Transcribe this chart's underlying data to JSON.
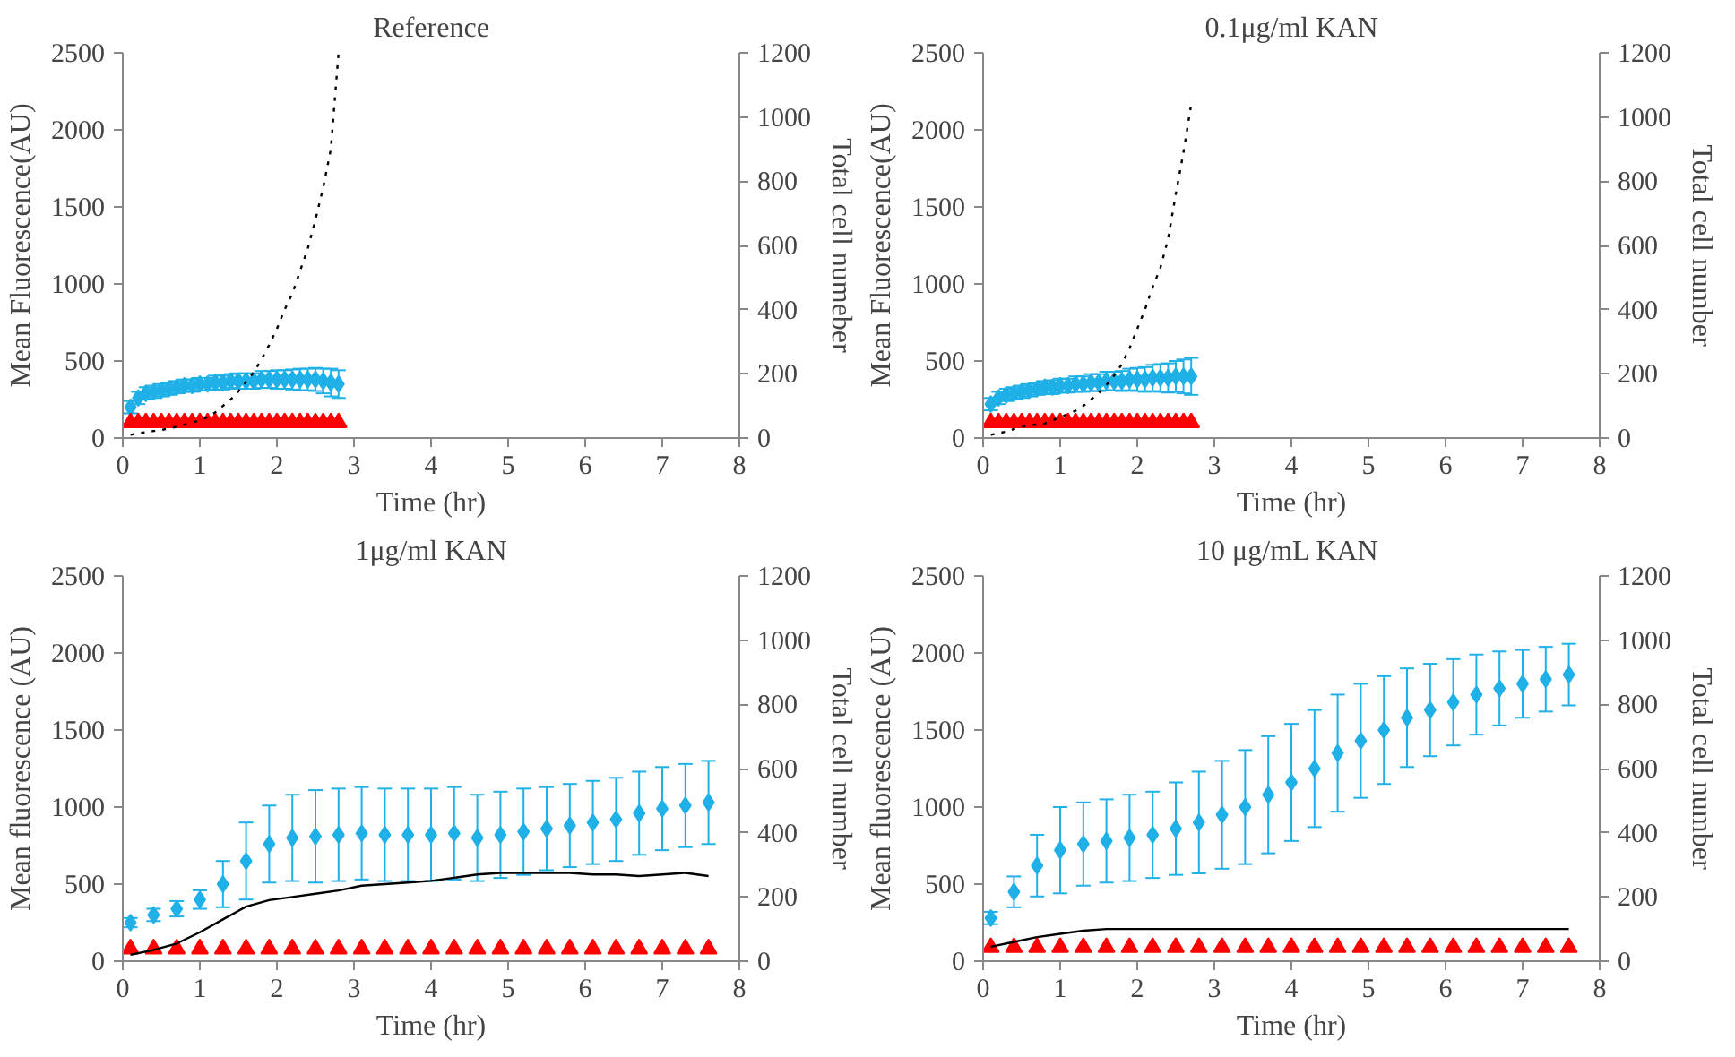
{
  "chart_data": [
    {
      "type": "scatter",
      "title": "Reference",
      "xlabel": "Time (hr)",
      "ylabel": "Mean Fluorescence(AU)",
      "y2label": "Total cell numeber",
      "xlim": [
        0,
        8
      ],
      "xticks": [
        0,
        1,
        2,
        3,
        4,
        5,
        6,
        7,
        8
      ],
      "ylim": [
        0,
        2500
      ],
      "yticks": [
        0,
        500,
        1000,
        1500,
        2000,
        2500
      ],
      "y2lim": [
        0,
        1200
      ],
      "y2ticks": [
        0,
        200,
        400,
        600,
        800,
        1000,
        1200
      ],
      "grid": false,
      "x": [
        0.1,
        0.2,
        0.3,
        0.4,
        0.5,
        0.6,
        0.7,
        0.8,
        0.9,
        1.0,
        1.1,
        1.2,
        1.3,
        1.4,
        1.5,
        1.6,
        1.7,
        1.8,
        1.9,
        2.0,
        2.1,
        2.2,
        2.3,
        2.4,
        2.5,
        2.6,
        2.7,
        2.8
      ],
      "series": [
        {
          "type": "scatter",
          "marker": "diamond",
          "color": "#1fb0e8",
          "values": [
            200,
            260,
            290,
            300,
            310,
            320,
            330,
            340,
            340,
            350,
            350,
            360,
            360,
            370,
            370,
            370,
            370,
            380,
            380,
            380,
            380,
            380,
            380,
            380,
            380,
            370,
            360,
            350
          ],
          "errors": [
            40,
            40,
            40,
            40,
            40,
            40,
            40,
            40,
            40,
            40,
            40,
            45,
            45,
            45,
            50,
            50,
            50,
            55,
            55,
            60,
            60,
            65,
            70,
            70,
            75,
            80,
            90,
            90
          ]
        },
        {
          "type": "scatter",
          "marker": "triangle",
          "color": "#ff0000",
          "values": [
            100,
            100,
            100,
            100,
            100,
            100,
            100,
            100,
            100,
            100,
            100,
            100,
            100,
            100,
            100,
            100,
            100,
            100,
            100,
            100,
            100,
            100,
            100,
            100,
            100,
            100,
            100,
            100
          ]
        },
        {
          "type": "line",
          "marker": "none",
          "line_style": "dotted",
          "axis": "y2",
          "color": "#000000",
          "values": [
            10,
            15,
            18,
            22,
            25,
            30,
            35,
            42,
            48,
            55,
            65,
            80,
            100,
            120,
            145,
            175,
            205,
            245,
            290,
            340,
            400,
            450,
            520,
            590,
            680,
            780,
            900,
            1200
          ]
        }
      ]
    },
    {
      "type": "scatter",
      "title": "0.1μg/ml KAN",
      "xlabel": "Time (hr)",
      "ylabel": "Mean Fluorescence(AU)",
      "y2label": "Total cell number",
      "xlim": [
        0,
        8
      ],
      "xticks": [
        0,
        1,
        2,
        3,
        4,
        5,
        6,
        7,
        8
      ],
      "ylim": [
        0,
        2500
      ],
      "yticks": [
        0,
        500,
        1000,
        1500,
        2000,
        2500
      ],
      "y2lim": [
        0,
        1200
      ],
      "y2ticks": [
        0,
        200,
        400,
        600,
        800,
        1000,
        1200
      ],
      "grid": false,
      "x": [
        0.1,
        0.2,
        0.3,
        0.4,
        0.5,
        0.6,
        0.7,
        0.8,
        0.9,
        1.0,
        1.1,
        1.2,
        1.3,
        1.4,
        1.5,
        1.6,
        1.7,
        1.8,
        1.9,
        2.0,
        2.1,
        2.2,
        2.3,
        2.4,
        2.5,
        2.6,
        2.7
      ],
      "series": [
        {
          "type": "scatter",
          "marker": "diamond",
          "color": "#1fb0e8",
          "values": [
            220,
            260,
            280,
            290,
            300,
            310,
            320,
            330,
            330,
            340,
            340,
            350,
            350,
            360,
            360,
            370,
            370,
            370,
            380,
            380,
            380,
            390,
            390,
            390,
            400,
            400,
            400
          ],
          "errors": [
            40,
            40,
            40,
            40,
            40,
            40,
            40,
            40,
            45,
            45,
            45,
            50,
            50,
            55,
            55,
            60,
            60,
            65,
            70,
            75,
            80,
            85,
            90,
            95,
            100,
            110,
            120
          ]
        },
        {
          "type": "scatter",
          "marker": "triangle",
          "color": "#ff0000",
          "values": [
            100,
            100,
            100,
            100,
            100,
            100,
            100,
            100,
            100,
            100,
            100,
            100,
            100,
            100,
            100,
            100,
            100,
            100,
            100,
            100,
            100,
            100,
            100,
            100,
            100,
            100,
            100
          ]
        },
        {
          "type": "line",
          "marker": "none",
          "line_style": "dotted",
          "axis": "y2",
          "color": "#000000",
          "values": [
            10,
            15,
            20,
            28,
            35,
            40,
            42,
            45,
            55,
            65,
            75,
            85,
            100,
            120,
            140,
            165,
            195,
            230,
            280,
            340,
            400,
            470,
            530,
            620,
            760,
            890,
            1040
          ]
        }
      ]
    },
    {
      "type": "scatter",
      "title": "1μg/ml KAN",
      "xlabel": "Time (hr)",
      "ylabel": "Mean fluorescence (AU)",
      "y2label": "Total cell number",
      "xlim": [
        0,
        8
      ],
      "xticks": [
        0,
        1,
        2,
        3,
        4,
        5,
        6,
        7,
        8
      ],
      "ylim": [
        0,
        2500
      ],
      "yticks": [
        0,
        500,
        1000,
        1500,
        2000,
        2500
      ],
      "y2lim": [
        0,
        1200
      ],
      "y2ticks": [
        0,
        200,
        400,
        600,
        800,
        1000,
        1200
      ],
      "grid": false,
      "x": [
        0.1,
        0.4,
        0.7,
        1.0,
        1.3,
        1.6,
        1.9,
        2.2,
        2.5,
        2.8,
        3.1,
        3.4,
        3.7,
        4.0,
        4.3,
        4.6,
        4.9,
        5.2,
        5.5,
        5.8,
        6.1,
        6.4,
        6.7,
        7.0,
        7.3,
        7.6
      ],
      "series": [
        {
          "type": "scatter",
          "marker": "diamond",
          "color": "#1fb0e8",
          "values": [
            250,
            300,
            340,
            400,
            500,
            650,
            760,
            800,
            810,
            820,
            830,
            820,
            820,
            820,
            830,
            800,
            820,
            840,
            860,
            880,
            900,
            920,
            960,
            990,
            1010,
            1030
          ],
          "errors": [
            30,
            40,
            50,
            60,
            150,
            250,
            250,
            280,
            300,
            300,
            300,
            300,
            300,
            300,
            300,
            280,
            280,
            280,
            270,
            270,
            270,
            270,
            270,
            270,
            270,
            270
          ]
        },
        {
          "type": "scatter",
          "marker": "triangle",
          "color": "#ff0000",
          "values": [
            80,
            80,
            80,
            80,
            80,
            80,
            80,
            80,
            80,
            80,
            80,
            80,
            80,
            80,
            80,
            80,
            80,
            80,
            80,
            80,
            80,
            80,
            80,
            80,
            80,
            80
          ]
        },
        {
          "type": "line",
          "marker": "none",
          "line_style": "solid",
          "axis": "y2",
          "color": "#000000",
          "values": [
            20,
            35,
            55,
            90,
            130,
            170,
            190,
            200,
            210,
            220,
            235,
            240,
            245,
            250,
            260,
            270,
            275,
            275,
            275,
            275,
            270,
            270,
            265,
            270,
            275,
            265
          ]
        }
      ]
    },
    {
      "type": "scatter",
      "title": "10 μg/mL  KAN",
      "xlabel": "Time (hr)",
      "ylabel": "Mean fluorescence (AU)",
      "y2label": "Total cell number",
      "xlim": [
        0,
        8
      ],
      "xticks": [
        0,
        1,
        2,
        3,
        4,
        5,
        6,
        7,
        8
      ],
      "ylim": [
        0,
        2500
      ],
      "yticks": [
        0,
        500,
        1000,
        1500,
        2000,
        2500
      ],
      "y2lim": [
        0,
        1200
      ],
      "y2ticks": [
        0,
        200,
        400,
        600,
        800,
        1000,
        1200
      ],
      "grid": false,
      "x": [
        0.1,
        0.4,
        0.7,
        1.0,
        1.3,
        1.6,
        1.9,
        2.2,
        2.5,
        2.8,
        3.1,
        3.4,
        3.7,
        4.0,
        4.3,
        4.6,
        4.9,
        5.2,
        5.5,
        5.8,
        6.1,
        6.4,
        6.7,
        7.0,
        7.3,
        7.6
      ],
      "series": [
        {
          "type": "scatter",
          "marker": "diamond",
          "color": "#1fb0e8",
          "values": [
            280,
            450,
            620,
            720,
            760,
            780,
            800,
            820,
            860,
            900,
            950,
            1000,
            1080,
            1160,
            1250,
            1350,
            1430,
            1500,
            1580,
            1630,
            1680,
            1730,
            1770,
            1800,
            1830,
            1860
          ],
          "errors": [
            40,
            100,
            200,
            280,
            270,
            270,
            280,
            280,
            300,
            330,
            350,
            370,
            380,
            380,
            380,
            380,
            370,
            350,
            320,
            300,
            280,
            260,
            240,
            220,
            210,
            200
          ]
        },
        {
          "type": "scatter",
          "marker": "triangle",
          "color": "#ff0000",
          "values": [
            90,
            90,
            90,
            90,
            90,
            90,
            90,
            90,
            90,
            90,
            90,
            90,
            90,
            90,
            90,
            90,
            90,
            90,
            90,
            90,
            90,
            90,
            90,
            90,
            90,
            90
          ]
        },
        {
          "type": "line",
          "marker": "none",
          "line_style": "solid",
          "axis": "y2",
          "color": "#000000",
          "values": [
            45,
            60,
            75,
            85,
            95,
            100,
            100,
            100,
            100,
            100,
            100,
            100,
            100,
            100,
            100,
            100,
            100,
            100,
            100,
            100,
            100,
            100,
            100,
            100,
            100,
            100
          ]
        }
      ]
    }
  ]
}
